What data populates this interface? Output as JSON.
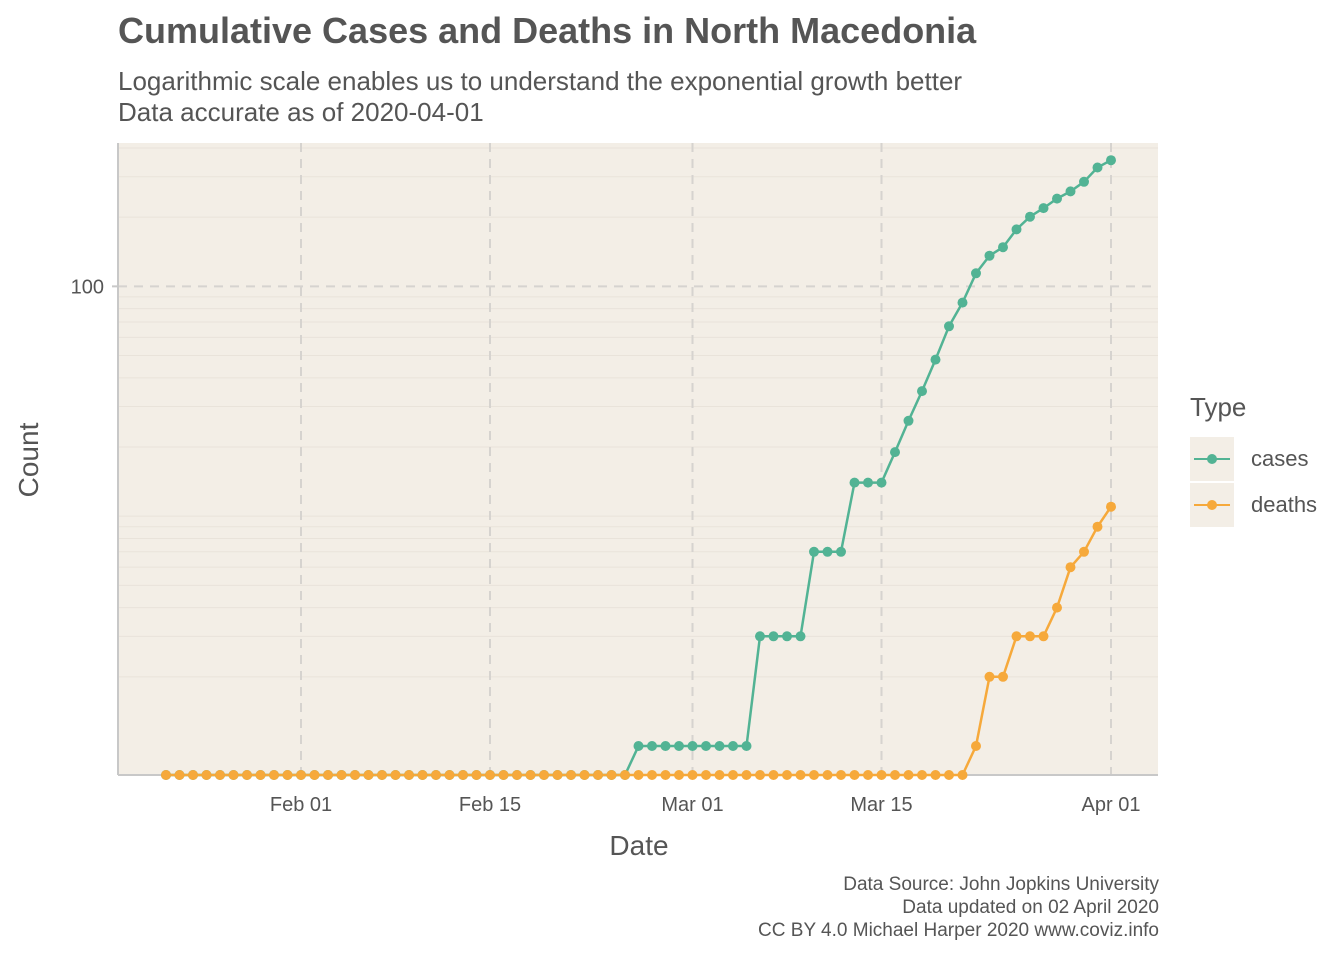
{
  "chart_data": {
    "type": "line",
    "title": "Cumulative Cases and Deaths in North Macedonia",
    "subtitle": [
      "Logarithmic scale enables us to understand the exponential growth better",
      "Data accurate as of 2020-04-01"
    ],
    "xlabel": "Date",
    "ylabel": "Count",
    "y_scale": "log10",
    "ylim": [
      1,
      400
    ],
    "x_range": [
      "2020-01-22",
      "2020-04-01"
    ],
    "x_ticks": [
      {
        "date": "2020-02-01",
        "label": "Feb 01"
      },
      {
        "date": "2020-02-15",
        "label": "Feb 15"
      },
      {
        "date": "2020-03-01",
        "label": "Mar 01"
      },
      {
        "date": "2020-03-15",
        "label": "Mar 15"
      },
      {
        "date": "2020-04-01",
        "label": "Apr 01"
      }
    ],
    "y_ticks": [
      {
        "value": 100,
        "label": "100"
      }
    ],
    "grid": true,
    "markers": true,
    "legend": {
      "title": "Type",
      "placement": "right"
    },
    "series": [
      {
        "name": "cases",
        "color": "#52b394",
        "points": [
          [
            "2020-01-22",
            0
          ],
          [
            "2020-01-23",
            0
          ],
          [
            "2020-01-24",
            0
          ],
          [
            "2020-01-25",
            0
          ],
          [
            "2020-01-26",
            0
          ],
          [
            "2020-01-27",
            0
          ],
          [
            "2020-01-28",
            0
          ],
          [
            "2020-01-29",
            0
          ],
          [
            "2020-01-30",
            0
          ],
          [
            "2020-01-31",
            0
          ],
          [
            "2020-02-01",
            0
          ],
          [
            "2020-02-02",
            0
          ],
          [
            "2020-02-03",
            0
          ],
          [
            "2020-02-04",
            0
          ],
          [
            "2020-02-05",
            0
          ],
          [
            "2020-02-06",
            0
          ],
          [
            "2020-02-07",
            0
          ],
          [
            "2020-02-08",
            0
          ],
          [
            "2020-02-09",
            0
          ],
          [
            "2020-02-10",
            0
          ],
          [
            "2020-02-11",
            0
          ],
          [
            "2020-02-12",
            0
          ],
          [
            "2020-02-13",
            0
          ],
          [
            "2020-02-14",
            0
          ],
          [
            "2020-02-15",
            0
          ],
          [
            "2020-02-16",
            0
          ],
          [
            "2020-02-17",
            0
          ],
          [
            "2020-02-18",
            0
          ],
          [
            "2020-02-19",
            0
          ],
          [
            "2020-02-20",
            0
          ],
          [
            "2020-02-21",
            0
          ],
          [
            "2020-02-22",
            0
          ],
          [
            "2020-02-23",
            0
          ],
          [
            "2020-02-24",
            0
          ],
          [
            "2020-02-25",
            0
          ],
          [
            "2020-02-26",
            1
          ],
          [
            "2020-02-27",
            1
          ],
          [
            "2020-02-28",
            1
          ],
          [
            "2020-02-29",
            1
          ],
          [
            "2020-03-01",
            1
          ],
          [
            "2020-03-02",
            1
          ],
          [
            "2020-03-03",
            1
          ],
          [
            "2020-03-04",
            1
          ],
          [
            "2020-03-05",
            1
          ],
          [
            "2020-03-06",
            3
          ],
          [
            "2020-03-07",
            3
          ],
          [
            "2020-03-08",
            3
          ],
          [
            "2020-03-09",
            3
          ],
          [
            "2020-03-10",
            7
          ],
          [
            "2020-03-11",
            7
          ],
          [
            "2020-03-12",
            7
          ],
          [
            "2020-03-13",
            14
          ],
          [
            "2020-03-14",
            14
          ],
          [
            "2020-03-15",
            14
          ],
          [
            "2020-03-16",
            19
          ],
          [
            "2020-03-17",
            26
          ],
          [
            "2020-03-18",
            35
          ],
          [
            "2020-03-19",
            48
          ],
          [
            "2020-03-20",
            67
          ],
          [
            "2020-03-21",
            85
          ],
          [
            "2020-03-22",
            114
          ],
          [
            "2020-03-23",
            136
          ],
          [
            "2020-03-24",
            148
          ],
          [
            "2020-03-25",
            177
          ],
          [
            "2020-03-26",
            201
          ],
          [
            "2020-03-27",
            219
          ],
          [
            "2020-03-28",
            241
          ],
          [
            "2020-03-29",
            259
          ],
          [
            "2020-03-30",
            285
          ],
          [
            "2020-03-31",
            329
          ],
          [
            "2020-04-01",
            354
          ]
        ]
      },
      {
        "name": "deaths",
        "color": "#f6a93b",
        "points": [
          [
            "2020-01-22",
            0
          ],
          [
            "2020-01-23",
            0
          ],
          [
            "2020-01-24",
            0
          ],
          [
            "2020-01-25",
            0
          ],
          [
            "2020-01-26",
            0
          ],
          [
            "2020-01-27",
            0
          ],
          [
            "2020-01-28",
            0
          ],
          [
            "2020-01-29",
            0
          ],
          [
            "2020-01-30",
            0
          ],
          [
            "2020-01-31",
            0
          ],
          [
            "2020-02-01",
            0
          ],
          [
            "2020-02-02",
            0
          ],
          [
            "2020-02-03",
            0
          ],
          [
            "2020-02-04",
            0
          ],
          [
            "2020-02-05",
            0
          ],
          [
            "2020-02-06",
            0
          ],
          [
            "2020-02-07",
            0
          ],
          [
            "2020-02-08",
            0
          ],
          [
            "2020-02-09",
            0
          ],
          [
            "2020-02-10",
            0
          ],
          [
            "2020-02-11",
            0
          ],
          [
            "2020-02-12",
            0
          ],
          [
            "2020-02-13",
            0
          ],
          [
            "2020-02-14",
            0
          ],
          [
            "2020-02-15",
            0
          ],
          [
            "2020-02-16",
            0
          ],
          [
            "2020-02-17",
            0
          ],
          [
            "2020-02-18",
            0
          ],
          [
            "2020-02-19",
            0
          ],
          [
            "2020-02-20",
            0
          ],
          [
            "2020-02-21",
            0
          ],
          [
            "2020-02-22",
            0
          ],
          [
            "2020-02-23",
            0
          ],
          [
            "2020-02-24",
            0
          ],
          [
            "2020-02-25",
            0
          ],
          [
            "2020-02-26",
            0
          ],
          [
            "2020-02-27",
            0
          ],
          [
            "2020-02-28",
            0
          ],
          [
            "2020-02-29",
            0
          ],
          [
            "2020-03-01",
            0
          ],
          [
            "2020-03-02",
            0
          ],
          [
            "2020-03-03",
            0
          ],
          [
            "2020-03-04",
            0
          ],
          [
            "2020-03-05",
            0
          ],
          [
            "2020-03-06",
            0
          ],
          [
            "2020-03-07",
            0
          ],
          [
            "2020-03-08",
            0
          ],
          [
            "2020-03-09",
            0
          ],
          [
            "2020-03-10",
            0
          ],
          [
            "2020-03-11",
            0
          ],
          [
            "2020-03-12",
            0
          ],
          [
            "2020-03-13",
            0
          ],
          [
            "2020-03-14",
            0
          ],
          [
            "2020-03-15",
            0
          ],
          [
            "2020-03-16",
            0
          ],
          [
            "2020-03-17",
            0
          ],
          [
            "2020-03-18",
            0
          ],
          [
            "2020-03-19",
            0
          ],
          [
            "2020-03-20",
            0
          ],
          [
            "2020-03-21",
            0
          ],
          [
            "2020-03-22",
            1
          ],
          [
            "2020-03-23",
            2
          ],
          [
            "2020-03-24",
            2
          ],
          [
            "2020-03-25",
            3
          ],
          [
            "2020-03-26",
            3
          ],
          [
            "2020-03-27",
            3
          ],
          [
            "2020-03-28",
            4
          ],
          [
            "2020-03-29",
            6
          ],
          [
            "2020-03-30",
            7
          ],
          [
            "2020-03-31",
            9
          ],
          [
            "2020-04-01",
            11
          ]
        ]
      }
    ],
    "caption": [
      "Data Source: John Jopkins University",
      "Data updated on 02 April 2020",
      "CC BY 4.0 Michael Harper 2020 www.coviz.info"
    ]
  }
}
